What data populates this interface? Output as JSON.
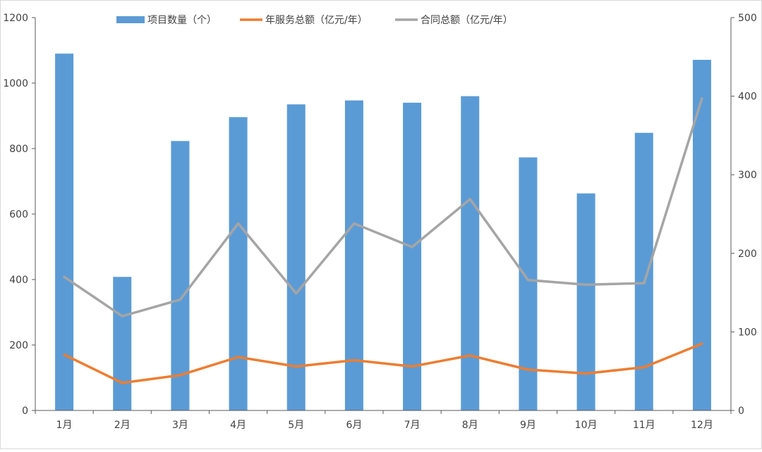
{
  "chart_data": {
    "type": "bar",
    "categories": [
      "1月",
      "2月",
      "3月",
      "4月",
      "5月",
      "6月",
      "7月",
      "8月",
      "9月",
      "10月",
      "11月",
      "12月"
    ],
    "series": [
      {
        "name": "项目数量（个）",
        "type": "bar",
        "axis": "left",
        "color": "#5b9bd5",
        "values": [
          1090,
          408,
          823,
          896,
          935,
          947,
          940,
          960,
          773,
          663,
          848,
          1071
        ]
      },
      {
        "name": "年服务总额（亿元/年）",
        "type": "line",
        "axis": "right",
        "color": "#ed7d31",
        "values": [
          71,
          35,
          45,
          68,
          56,
          64,
          56,
          70,
          52,
          47,
          55,
          85
        ]
      },
      {
        "name": "合同总额（亿元/年）",
        "type": "line",
        "axis": "right",
        "color": "#a5a5a5",
        "values": [
          170,
          120,
          141,
          238,
          149,
          238,
          208,
          269,
          166,
          160,
          162,
          397
        ]
      }
    ],
    "left_axis": {
      "ylim": [
        0,
        1200
      ],
      "ticks": [
        "0",
        "200",
        "400",
        "600",
        "800",
        "1000",
        "1200"
      ]
    },
    "right_axis": {
      "ylim": [
        0,
        500
      ],
      "ticks": [
        "0",
        "100",
        "200",
        "300",
        "400",
        "500"
      ]
    },
    "legend_position": "top",
    "grid": false
  }
}
